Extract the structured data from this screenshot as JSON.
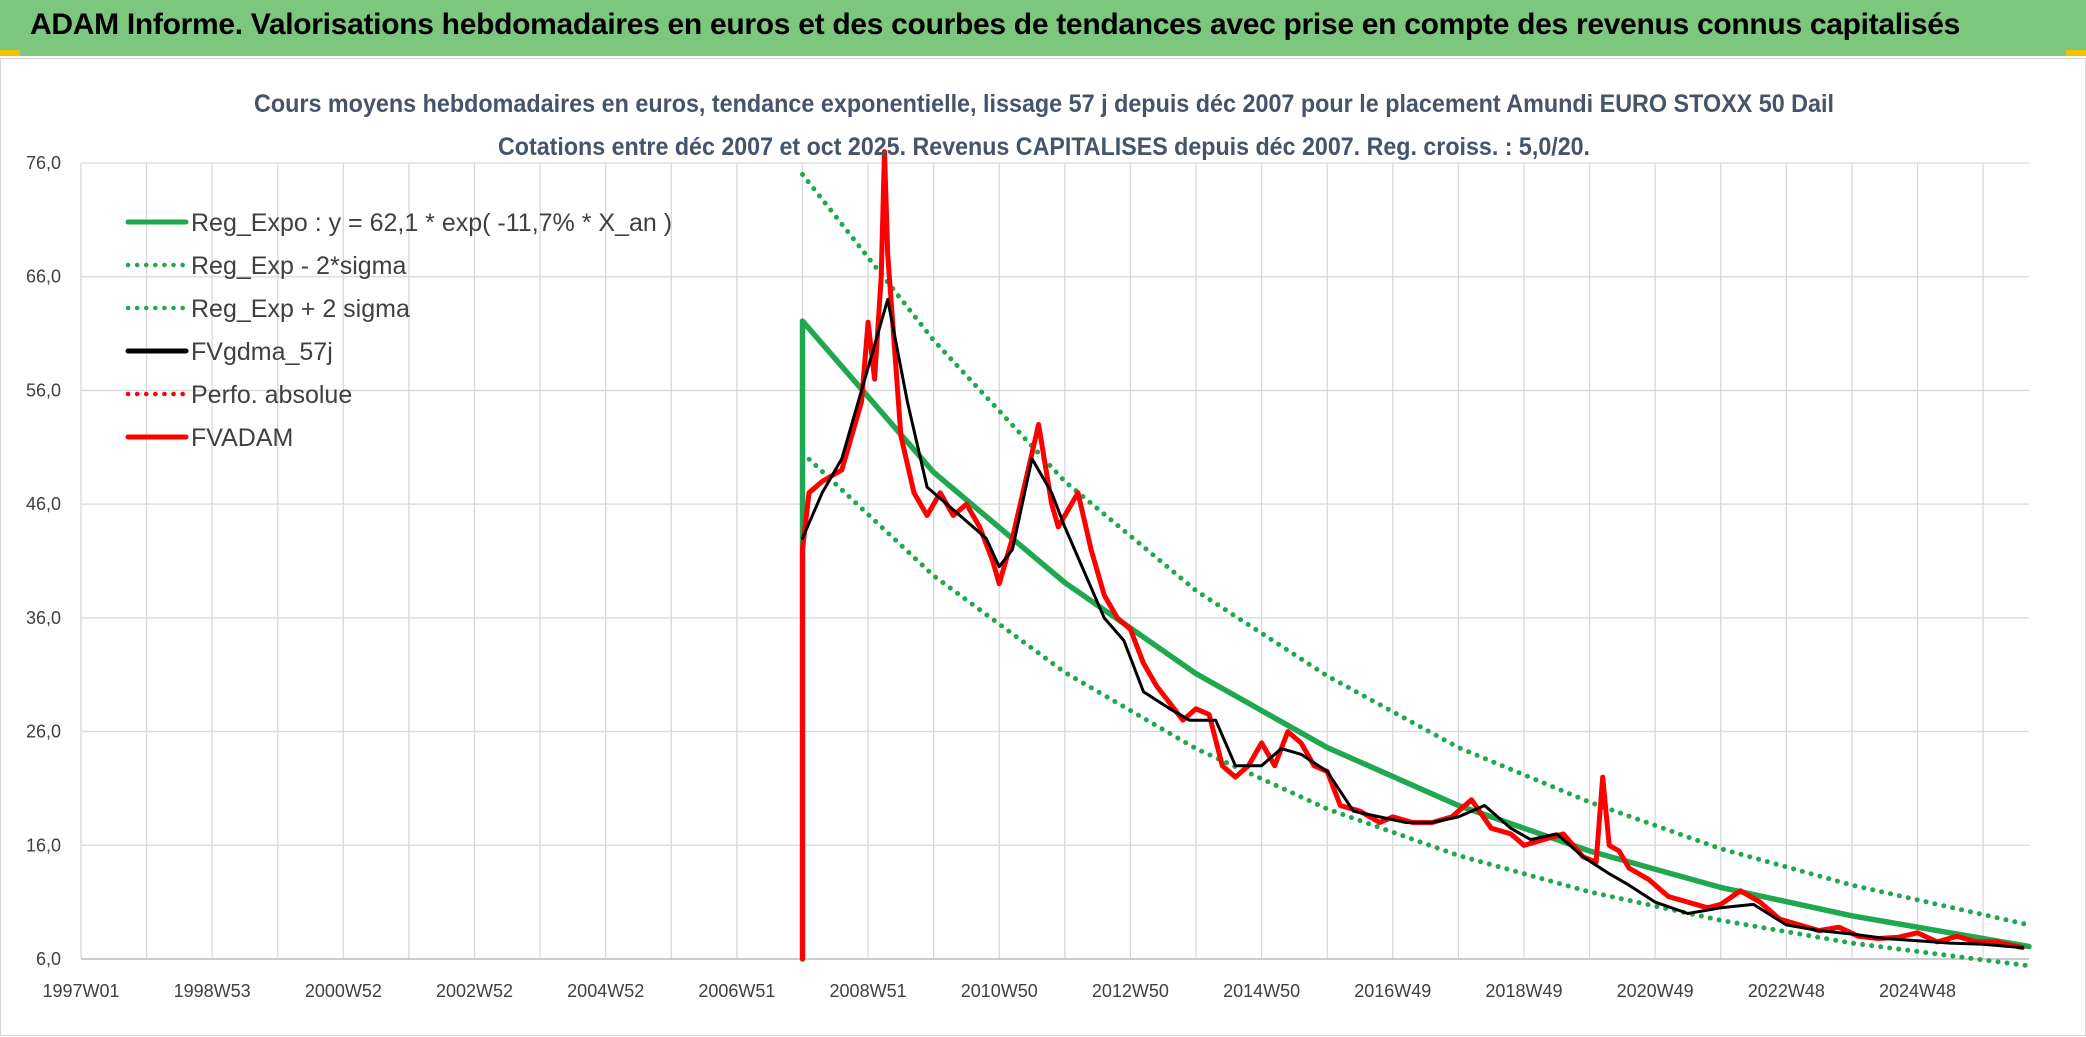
{
  "banner": {
    "title": "ADAM Informe. Valorisations hebdomadaires en euros et des courbes de tendances avec prise en compte des revenus connus capitalisés",
    "background": "#7cc67e",
    "corner_color": "#f2c200"
  },
  "chart_data": {
    "type": "line",
    "title": "Cours moyens hebdomadaires en euros, tendance exponentielle, lissage 57 j depuis déc 2007 pour le placement Amundi EURO STOXX 50 Dail",
    "subtitle": "Cotations entre déc 2007 et oct 2025. Revenus CAPITALISES depuis déc 2007. Reg. croiss. : 5,0/20.",
    "xlabel": "",
    "ylabel": "",
    "x_unit": "year",
    "xlim": [
      1997.0,
      2026.7
    ],
    "ylim": [
      6.0,
      76.0
    ],
    "y_ticks": [
      "6,0",
      "16,0",
      "26,0",
      "36,0",
      "46,0",
      "56,0",
      "66,0",
      "76,0"
    ],
    "x_ticks": [
      {
        "label": "1997W01",
        "x": 1997.0
      },
      {
        "label": "1998W53",
        "x": 1999.0
      },
      {
        "label": "2000W52",
        "x": 2001.0
      },
      {
        "label": "2002W52",
        "x": 2003.0
      },
      {
        "label": "2004W52",
        "x": 2005.0
      },
      {
        "label": "2006W51",
        "x": 2007.0
      },
      {
        "label": "2008W51",
        "x": 2009.0
      },
      {
        "label": "2010W50",
        "x": 2011.0
      },
      {
        "label": "2012W50",
        "x": 2013.0
      },
      {
        "label": "2014W50",
        "x": 2015.0
      },
      {
        "label": "2016W49",
        "x": 2017.0
      },
      {
        "label": "2018W49",
        "x": 2019.0
      },
      {
        "label": "2020W49",
        "x": 2021.0
      },
      {
        "label": "2022W48",
        "x": 2023.0
      },
      {
        "label": "2024W48",
        "x": 2025.0
      }
    ],
    "grid": true,
    "legend_position": "top-left",
    "series": [
      {
        "name": "Reg_Expo : y = 62,1 * exp( -11,7% *  X_an )",
        "color": "#1fa84f",
        "style": "solid",
        "x": [
          2008.0,
          2008.0,
          2010.0,
          2012.0,
          2014.0,
          2016.0,
          2018.0,
          2020.0,
          2022.0,
          2024.0,
          2026.7
        ],
        "values": [
          6.0,
          62.1,
          48.8,
          39.1,
          31.1,
          24.6,
          19.5,
          15.5,
          12.3,
          9.8,
          7.1
        ]
      },
      {
        "name": "Reg_Exp - 2*sigma",
        "color": "#1fa84f",
        "style": "dotted",
        "x": [
          2008.0,
          2010.0,
          2012.0,
          2014.0,
          2016.0,
          2018.0,
          2020.0,
          2022.0,
          2024.0,
          2026.7
        ],
        "values": [
          50.5,
          39.7,
          31.2,
          24.5,
          19.2,
          15.1,
          11.9,
          9.4,
          7.4,
          5.4
        ]
      },
      {
        "name": "Reg_Exp + 2 sigma",
        "color": "#1fa84f",
        "style": "dotted",
        "x": [
          2008.0,
          2010.0,
          2012.0,
          2014.0,
          2016.0,
          2018.0,
          2020.0,
          2022.0,
          2024.0,
          2026.7
        ],
        "values": [
          75.0,
          60.4,
          48.0,
          38.4,
          30.9,
          24.6,
          19.8,
          15.7,
          12.5,
          9.0
        ]
      },
      {
        "name": "FVgdma_57j",
        "color": "#000000",
        "style": "solid",
        "x": [
          2008.0,
          2008.3,
          2008.6,
          2009.0,
          2009.3,
          2009.6,
          2009.9,
          2010.2,
          2010.5,
          2010.8,
          2011.0,
          2011.2,
          2011.5,
          2011.8,
          2012.0,
          2012.3,
          2012.6,
          2012.9,
          2013.2,
          2013.6,
          2013.9,
          2014.3,
          2014.6,
          2015.0,
          2015.3,
          2015.6,
          2016.0,
          2016.4,
          2016.8,
          2017.2,
          2017.6,
          2018.0,
          2018.4,
          2018.8,
          2019.1,
          2019.5,
          2019.9,
          2020.3,
          2020.6,
          2021.0,
          2021.5,
          2022.0,
          2022.5,
          2023.0,
          2023.5,
          2024.0,
          2024.5,
          2025.0,
          2025.5,
          2026.0,
          2026.6
        ],
        "values": [
          43.0,
          47.0,
          50.0,
          58.0,
          64.0,
          55.0,
          47.5,
          46.0,
          44.5,
          43.0,
          40.5,
          42.0,
          50.0,
          47.0,
          44.0,
          40.0,
          36.0,
          34.0,
          29.5,
          28.0,
          27.0,
          27.0,
          23.0,
          23.0,
          24.5,
          24.0,
          22.5,
          19.0,
          18.5,
          18.0,
          18.0,
          18.5,
          19.5,
          17.5,
          16.5,
          17.0,
          15.0,
          13.5,
          12.5,
          11.0,
          10.0,
          10.5,
          10.8,
          9.0,
          8.5,
          8.2,
          7.8,
          7.6,
          7.4,
          7.3,
          7.0
        ]
      },
      {
        "name": "Perfo. absolue",
        "color": "#ff0000",
        "style": "dotted",
        "x": [
          2008.0,
          2008.0,
          2008.1,
          2008.3,
          2008.6,
          2008.9,
          2009.0,
          2009.1,
          2009.2,
          2009.25,
          2009.3,
          2009.4,
          2009.5,
          2009.7,
          2009.9,
          2010.1,
          2010.3,
          2010.5,
          2010.7,
          2010.9,
          2011.0,
          2011.2,
          2011.4,
          2011.6,
          2011.8,
          2011.9,
          2012.0,
          2012.2,
          2012.4,
          2012.6,
          2012.8,
          2013.0,
          2013.2,
          2013.4,
          2013.6,
          2013.8,
          2014.0,
          2014.2,
          2014.4,
          2014.6,
          2014.8,
          2015.0,
          2015.2,
          2015.4,
          2015.6,
          2015.8,
          2016.0,
          2016.2,
          2016.5,
          2016.8,
          2017.0,
          2017.3,
          2017.6,
          2017.9,
          2018.2,
          2018.5,
          2018.8,
          2019.0,
          2019.3,
          2019.6,
          2019.9,
          2020.1,
          2020.2,
          2020.3,
          2020.45,
          2020.6,
          2020.9,
          2021.2,
          2021.5,
          2021.8,
          2022.0,
          2022.3,
          2022.6,
          2022.9,
          2023.2,
          2023.5,
          2023.8,
          2024.1,
          2024.4,
          2024.7,
          2025.0,
          2025.3,
          2025.6,
          2025.9,
          2026.2,
          2026.6
        ],
        "values": [
          6.0,
          42.0,
          47.0,
          48.0,
          49.0,
          55.0,
          62.0,
          57.0,
          66.0,
          77.0,
          68.0,
          60.0,
          52.0,
          47.0,
          45.0,
          47.0,
          45.0,
          46.0,
          44.0,
          41.0,
          39.0,
          43.0,
          48.0,
          53.0,
          46.0,
          44.0,
          45.0,
          47.0,
          42.0,
          38.0,
          36.0,
          35.0,
          32.0,
          30.0,
          28.5,
          27.0,
          28.0,
          27.5,
          23.0,
          22.0,
          23.0,
          25.0,
          23.0,
          26.0,
          25.0,
          23.0,
          22.5,
          19.5,
          19.0,
          18.0,
          18.5,
          18.0,
          18.0,
          18.5,
          20.0,
          17.5,
          17.0,
          16.0,
          16.5,
          17.0,
          15.0,
          14.5,
          22.0,
          16.0,
          15.5,
          14.0,
          13.0,
          11.5,
          11.0,
          10.5,
          10.8,
          12.0,
          11.0,
          9.5,
          9.0,
          8.5,
          8.8,
          8.0,
          7.8,
          7.9,
          8.3,
          7.5,
          8.0,
          7.5,
          7.5,
          7.0
        ]
      },
      {
        "name": "FVADAM",
        "color": "#ff0000",
        "style": "solid",
        "x": [
          2008.0,
          2008.0,
          2008.1,
          2008.3,
          2008.6,
          2008.9,
          2009.0,
          2009.1,
          2009.2,
          2009.25,
          2009.3,
          2009.4,
          2009.5,
          2009.7,
          2009.9,
          2010.1,
          2010.3,
          2010.5,
          2010.7,
          2010.9,
          2011.0,
          2011.2,
          2011.4,
          2011.6,
          2011.8,
          2011.9,
          2012.0,
          2012.2,
          2012.4,
          2012.6,
          2012.8,
          2013.0,
          2013.2,
          2013.4,
          2013.6,
          2013.8,
          2014.0,
          2014.2,
          2014.4,
          2014.6,
          2014.8,
          2015.0,
          2015.2,
          2015.4,
          2015.6,
          2015.8,
          2016.0,
          2016.2,
          2016.5,
          2016.8,
          2017.0,
          2017.3,
          2017.6,
          2017.9,
          2018.2,
          2018.5,
          2018.8,
          2019.0,
          2019.3,
          2019.6,
          2019.9,
          2020.1,
          2020.2,
          2020.3,
          2020.45,
          2020.6,
          2020.9,
          2021.2,
          2021.5,
          2021.8,
          2022.0,
          2022.3,
          2022.6,
          2022.9,
          2023.2,
          2023.5,
          2023.8,
          2024.1,
          2024.4,
          2024.7,
          2025.0,
          2025.3,
          2025.6,
          2025.9,
          2026.2,
          2026.6
        ],
        "values": [
          6.0,
          42.0,
          47.0,
          48.0,
          49.0,
          55.0,
          62.0,
          57.0,
          66.0,
          77.0,
          68.0,
          60.0,
          52.0,
          47.0,
          45.0,
          47.0,
          45.0,
          46.0,
          44.0,
          41.0,
          39.0,
          43.0,
          48.0,
          53.0,
          46.0,
          44.0,
          45.0,
          47.0,
          42.0,
          38.0,
          36.0,
          35.0,
          32.0,
          30.0,
          28.5,
          27.0,
          28.0,
          27.5,
          23.0,
          22.0,
          23.0,
          25.0,
          23.0,
          26.0,
          25.0,
          23.0,
          22.5,
          19.5,
          19.0,
          18.0,
          18.5,
          18.0,
          18.0,
          18.5,
          20.0,
          17.5,
          17.0,
          16.0,
          16.5,
          17.0,
          15.0,
          14.5,
          22.0,
          16.0,
          15.5,
          14.0,
          13.0,
          11.5,
          11.0,
          10.5,
          10.8,
          12.0,
          11.0,
          9.5,
          9.0,
          8.5,
          8.8,
          8.0,
          7.8,
          7.9,
          8.3,
          7.5,
          8.0,
          7.5,
          7.5,
          7.0
        ]
      }
    ]
  }
}
